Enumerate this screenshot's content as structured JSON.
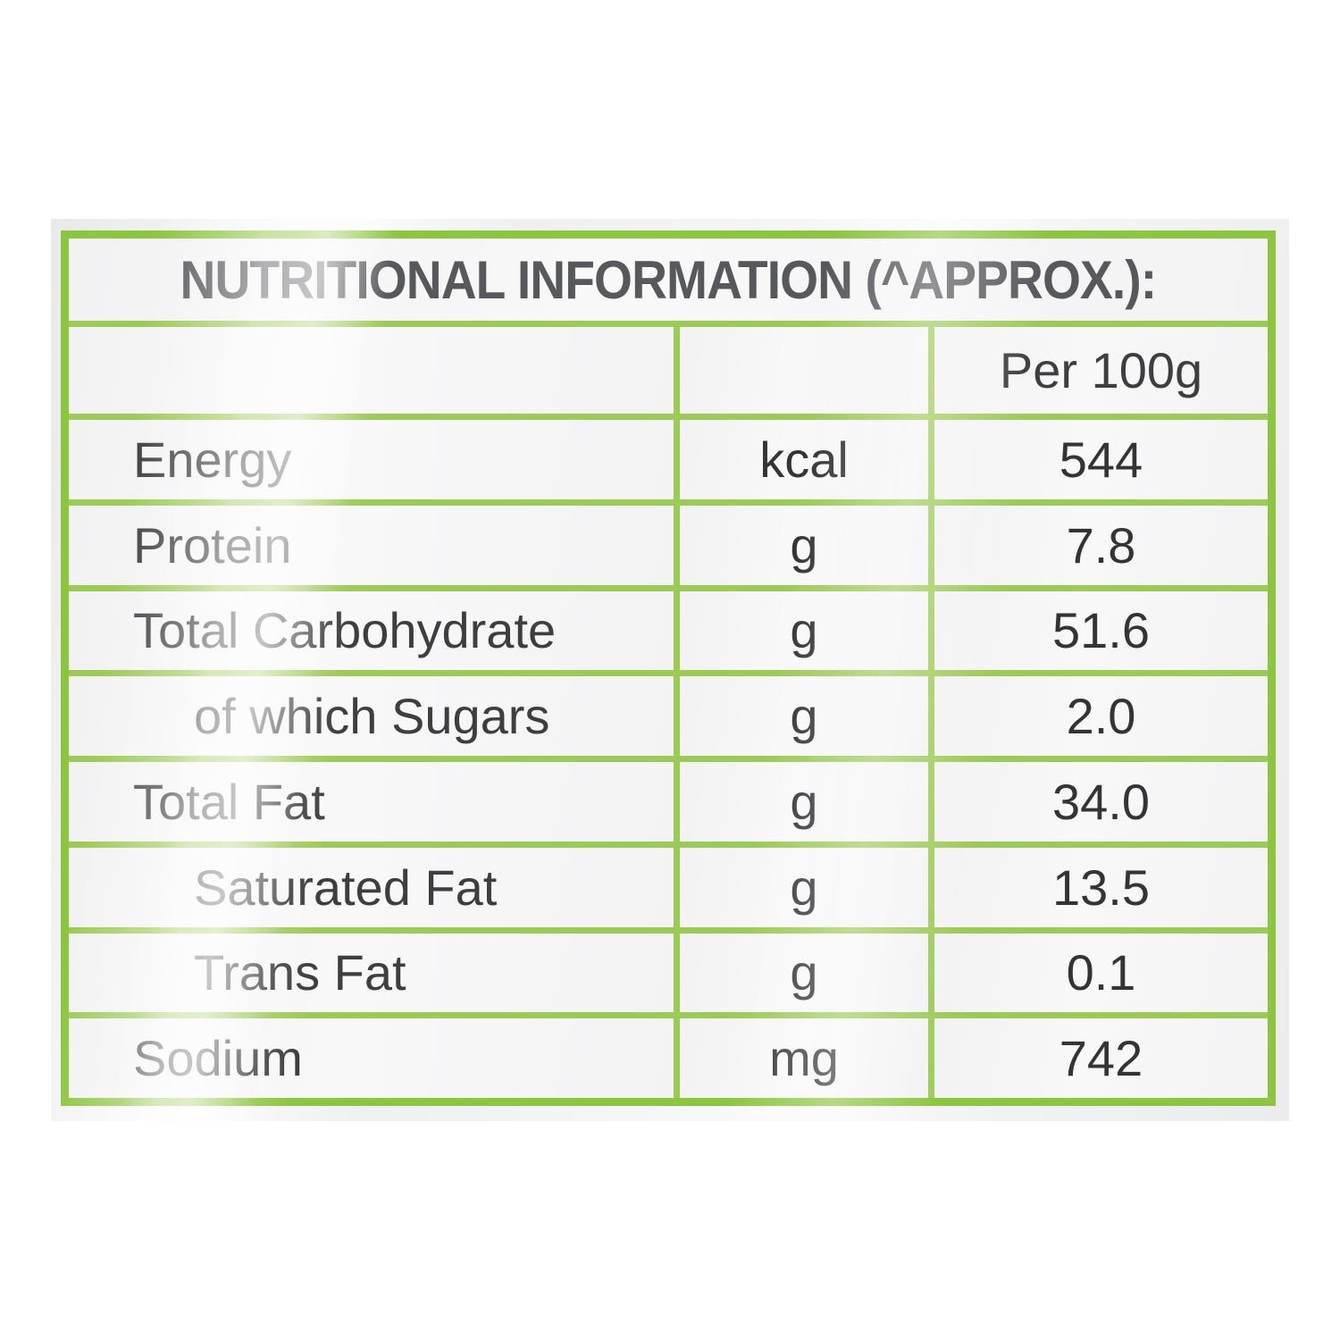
{
  "colors": {
    "border_green": "#8CC63F",
    "grid_green": "#9CCB55",
    "title_text": "#57585C",
    "body_text": "#3D3E40"
  },
  "table": {
    "title": "NUTRITIONAL INFORMATION (^APPROX.):",
    "column_header": "Per 100g",
    "rows": [
      {
        "label": "Energy",
        "unit": "kcal",
        "value": "544"
      },
      {
        "label": "Protein",
        "unit": "g",
        "value": "7.8"
      },
      {
        "label": "Total Carbohydrate",
        "unit": "g",
        "value": "51.6"
      },
      {
        "label": "of which Sugars",
        "unit": "g",
        "value": "2.0"
      },
      {
        "label": "Total Fat",
        "unit": "g",
        "value": "34.0"
      },
      {
        "label": "Saturated Fat",
        "unit": "g",
        "value": "13.5"
      },
      {
        "label": "Trans Fat",
        "unit": "g",
        "value": "0.1"
      },
      {
        "label": "Sodium",
        "unit": "mg",
        "value": "742"
      }
    ]
  }
}
